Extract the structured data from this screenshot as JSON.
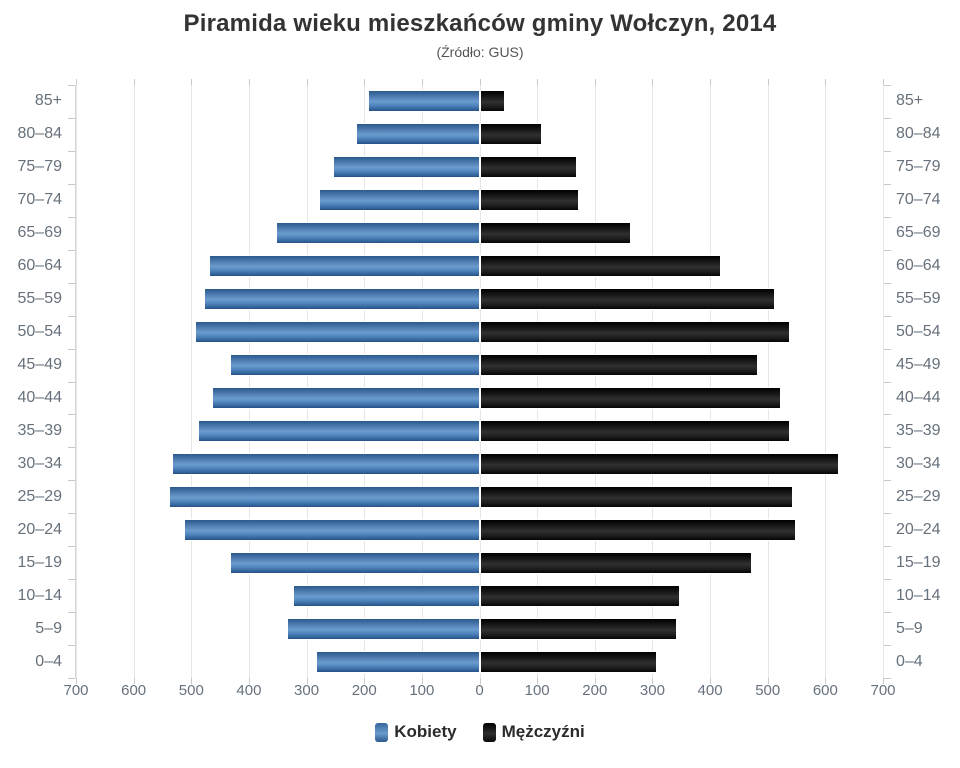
{
  "title": "Piramida wieku mieszkańców gminy Wołczyn, 2014",
  "subtitle": "(Źródło: GUS)",
  "legend": {
    "kobiety_label": "Kobiety",
    "mezczyzni_label": "Mężczyźni"
  },
  "colors": {
    "kobiety": "#4779b4",
    "mezczyzni": "#1a1a1a",
    "axis_text": "#66717c",
    "gridline": "#e6e6e6",
    "title_text": "#333333"
  },
  "chart_data": {
    "type": "bar",
    "subtype": "population-pyramid",
    "title": "Piramida wieku mieszkańców gminy Wołczyn, 2014",
    "subtitle": "(Źródło: GUS)",
    "categories": [
      "85+",
      "80–84",
      "75–79",
      "70–74",
      "65–69",
      "60–64",
      "55–59",
      "50–54",
      "45–49",
      "40–44",
      "35–39",
      "30–34",
      "25–29",
      "20–24",
      "15–19",
      "10–14",
      "5–9",
      "0–4"
    ],
    "series": [
      {
        "name": "Kobiety",
        "side": "left",
        "color": "#4779b4",
        "values": [
          190,
          210,
          250,
          275,
          350,
          465,
          475,
          490,
          430,
          460,
          485,
          530,
          535,
          510,
          430,
          320,
          330,
          280
        ]
      },
      {
        "name": "Mężczyźni",
        "side": "right",
        "color": "#1a1a1a",
        "values": [
          40,
          105,
          165,
          170,
          260,
          415,
          510,
          535,
          480,
          520,
          535,
          620,
          540,
          545,
          470,
          345,
          340,
          305
        ]
      }
    ],
    "xlabel": "",
    "ylabel": "",
    "axis_max_each_side": 700,
    "x_tick_step": 100,
    "x_tick_labels": [
      "700",
      "600",
      "500",
      "400",
      "300",
      "200",
      "100",
      "0",
      "100",
      "200",
      "300",
      "400",
      "500",
      "600",
      "700"
    ],
    "grid": true,
    "legend_position": "bottom"
  }
}
